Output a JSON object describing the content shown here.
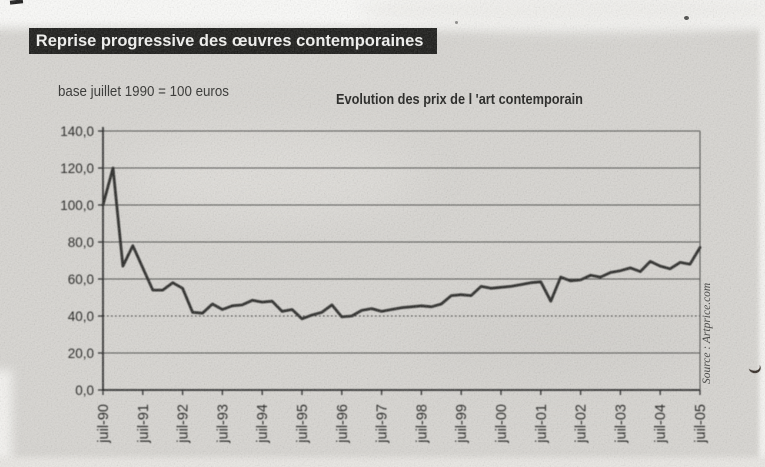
{
  "page": {
    "header_title": "Reprise progressive des œuvres contemporaines"
  },
  "chart_data": {
    "type": "line",
    "title": "Evolution des prix de l 'art contemporain",
    "base_note": "base juillet 1990 = 100 euros",
    "source": "Source : Artprice.com",
    "frequency": "quarterly from juil-90 to juil-05",
    "x_tick_labels": [
      "juil-90",
      "juil-91",
      "juil-92",
      "juil-93",
      "juil-94",
      "juil-95",
      "juil-96",
      "juil-97",
      "juil-98",
      "juil-99",
      "juil-00",
      "juil-01",
      "juil-02",
      "juil-03",
      "juil-04",
      "juil-05"
    ],
    "ytick_labels": [
      "140,0",
      "120,0",
      "100,0",
      "80,0",
      "60,0",
      "40,0",
      "20,0",
      "0,0"
    ],
    "ylim": [
      0,
      140
    ],
    "grid": "horizontal every 20, line at 40 dotted",
    "legend": "none",
    "line_color": "#272725",
    "values": [
      100,
      120,
      67,
      78,
      66,
      54,
      54,
      58,
      55,
      42,
      41.5,
      46.5,
      43.5,
      45.5,
      46,
      48.5,
      47.5,
      48,
      42.5,
      43.5,
      38.5,
      40.5,
      42,
      46,
      39.5,
      40,
      43,
      44,
      42.5,
      43.5,
      44.5,
      45,
      45.5,
      45,
      46.5,
      51,
      51.5,
      51,
      56,
      55,
      55.5,
      56,
      57,
      58,
      58.5,
      48,
      61,
      59,
      59.5,
      62,
      61,
      63.5,
      64.5,
      66,
      64,
      69.5,
      67,
      65.5,
      69,
      68,
      77
    ]
  }
}
